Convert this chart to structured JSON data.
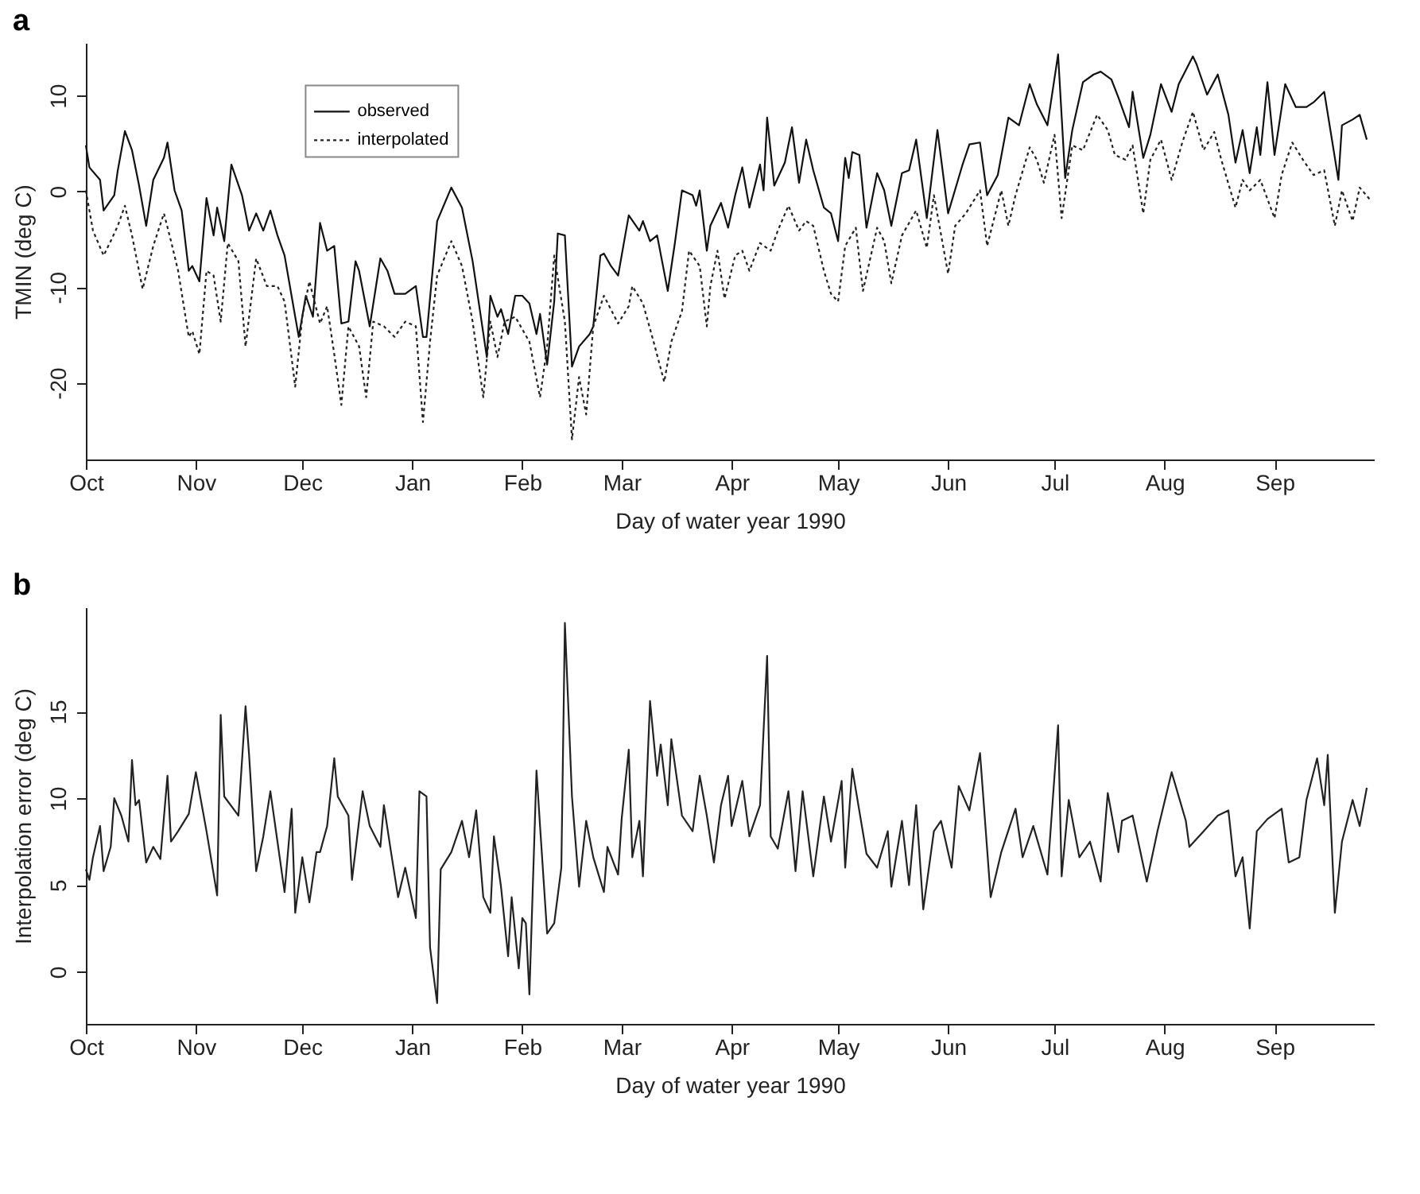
{
  "chart_data": [
    {
      "type": "line",
      "title": "a",
      "xlabel": "Day of water year 1990",
      "ylabel": "TMIN (deg C)",
      "xlim": [
        "1989-10-01",
        "1990-09-29"
      ],
      "xticks": [
        {
          "value": "1989-10-01",
          "label": "Oct"
        },
        {
          "value": "1989-11-01",
          "label": "Nov"
        },
        {
          "value": "1989-12-01",
          "label": "Dec"
        },
        {
          "value": "1990-01-01",
          "label": "Jan"
        },
        {
          "value": "1990-02-01",
          "label": "Feb"
        },
        {
          "value": "1990-03-01",
          "label": "Mar"
        },
        {
          "value": "1990-04-01",
          "label": "Apr"
        },
        {
          "value": "1990-05-01",
          "label": "May"
        },
        {
          "value": "1990-06-01",
          "label": "Jun"
        },
        {
          "value": "1990-07-01",
          "label": "Jul"
        },
        {
          "value": "1990-08-01",
          "label": "Aug"
        },
        {
          "value": "1990-09-01",
          "label": "Sep"
        }
      ],
      "ylim": [
        -28,
        15.5
      ],
      "yticks": [
        -20,
        -10,
        0,
        10
      ],
      "legend": "top left",
      "series": [
        {
          "name": "observed",
          "color": "#111111",
          "line_style": "solid",
          "x": [
            "1989-10-01",
            "1989-10-02",
            "1989-10-05",
            "1989-10-06",
            "1989-10-09",
            "1989-10-10",
            "1989-10-12",
            "1989-10-14",
            "1989-10-16",
            "1989-10-18",
            "1989-10-20",
            "1989-10-23",
            "1989-10-24",
            "1989-10-26",
            "1989-10-28",
            "1989-10-30",
            "1989-10-31",
            "1989-11-02",
            "1989-11-04",
            "1989-11-06",
            "1989-11-07",
            "1989-11-09",
            "1989-11-11",
            "1989-11-14",
            "1989-11-16",
            "1989-11-18",
            "1989-11-20",
            "1989-11-22",
            "1989-11-24",
            "1989-11-26",
            "1989-11-29",
            "1989-11-30",
            "1989-12-02",
            "1989-12-04",
            "1989-12-06",
            "1989-12-08",
            "1989-12-10",
            "1989-12-12",
            "1989-12-14",
            "1989-12-16",
            "1989-12-17",
            "1989-12-20",
            "1989-12-23",
            "1989-12-25",
            "1989-12-27",
            "1989-12-30",
            "1990-01-02",
            "1990-01-04",
            "1990-01-05",
            "1990-01-08",
            "1990-01-12",
            "1990-01-15",
            "1990-01-18",
            "1990-01-22",
            "1990-01-23",
            "1990-01-25",
            "1990-01-26",
            "1990-01-28",
            "1990-01-30",
            "1990-02-01",
            "1990-02-03",
            "1990-02-05",
            "1990-02-06",
            "1990-02-08",
            "1990-02-10",
            "1990-02-11",
            "1990-02-13",
            "1990-02-15",
            "1990-02-17",
            "1990-02-20",
            "1990-02-21",
            "1990-02-23",
            "1990-02-24",
            "1990-02-26",
            "1990-02-28",
            "1990-03-02",
            "1990-03-03",
            "1990-03-06",
            "1990-03-07",
            "1990-03-09",
            "1990-03-11",
            "1990-03-14",
            "1990-03-16",
            "1990-03-18",
            "1990-03-21",
            "1990-03-22",
            "1990-03-23",
            "1990-03-25",
            "1990-03-26",
            "1990-03-29",
            "1990-03-31",
            "1990-04-02",
            "1990-04-04",
            "1990-04-06",
            "1990-04-09",
            "1990-04-10",
            "1990-04-11",
            "1990-04-13",
            "1990-04-16",
            "1990-04-18",
            "1990-04-20",
            "1990-04-22",
            "1990-04-24",
            "1990-04-27",
            "1990-04-29",
            "1990-05-01",
            "1990-05-03",
            "1990-05-04",
            "1990-05-05",
            "1990-05-07",
            "1990-05-09",
            "1990-05-12",
            "1990-05-14",
            "1990-05-16",
            "1990-05-19",
            "1990-05-21",
            "1990-05-23",
            "1990-05-26",
            "1990-05-29",
            "1990-06-01",
            "1990-06-05",
            "1990-06-07",
            "1990-06-10",
            "1990-06-12",
            "1990-06-15",
            "1990-06-18",
            "1990-06-21",
            "1990-06-24",
            "1990-06-26",
            "1990-06-29",
            "1990-07-02",
            "1990-07-04",
            "1990-07-06",
            "1990-07-09",
            "1990-07-12",
            "1990-07-14",
            "1990-07-17",
            "1990-07-19",
            "1990-07-22",
            "1990-07-23",
            "1990-07-26",
            "1990-07-28",
            "1990-07-31",
            "1990-08-03",
            "1990-08-05",
            "1990-08-09",
            "1990-08-10",
            "1990-08-13",
            "1990-08-16",
            "1990-08-19",
            "1990-08-21",
            "1990-08-23",
            "1990-08-25",
            "1990-08-27",
            "1990-08-28",
            "1990-08-30",
            "1990-09-01",
            "1990-09-04",
            "1990-09-07",
            "1990-09-10",
            "1990-09-12",
            "1990-09-15",
            "1990-09-19",
            "1990-09-20",
            "1990-09-23",
            "1990-09-25",
            "1990-09-27"
          ],
          "values": [
            4.8,
            2.5,
            1.2,
            -2.0,
            -0.4,
            2.2,
            6.3,
            4.3,
            0.6,
            -3.6,
            1.2,
            3.5,
            5.1,
            0.1,
            -2.0,
            -8.3,
            -7.8,
            -9.4,
            -0.7,
            -4.6,
            -1.7,
            -5.2,
            2.8,
            -0.4,
            -4.1,
            -2.3,
            -4.1,
            -2.0,
            -4.6,
            -6.7,
            -13.1,
            -15.2,
            -10.9,
            -13.1,
            -3.3,
            -6.2,
            -5.7,
            -13.8,
            -13.6,
            -7.3,
            -8.3,
            -14.1,
            -7.0,
            -8.3,
            -10.7,
            -10.7,
            -9.9,
            -15.2,
            -15.2,
            -3.1,
            0.4,
            -1.7,
            -7.3,
            -17.3,
            -10.9,
            -13.1,
            -12.3,
            -14.9,
            -10.9,
            -10.9,
            -11.7,
            -14.9,
            -12.8,
            -18.1,
            -11.5,
            -4.4,
            -4.6,
            -18.3,
            -16.2,
            -14.9,
            -14.1,
            -6.7,
            -6.5,
            -7.8,
            -8.8,
            -4.6,
            -2.5,
            -4.1,
            -3.1,
            -5.2,
            -4.6,
            -10.4,
            -5.4,
            0.1,
            -0.4,
            -1.5,
            0.1,
            -6.2,
            -3.6,
            -1.2,
            -3.8,
            -0.4,
            2.5,
            -1.7,
            2.8,
            0.1,
            7.7,
            0.6,
            3.0,
            6.7,
            0.9,
            5.4,
            2.2,
            -1.7,
            -2.3,
            -5.2,
            3.5,
            1.4,
            4.1,
            3.8,
            -3.8,
            1.9,
            0.1,
            -3.6,
            1.9,
            2.2,
            5.4,
            -2.8,
            6.4,
            -2.3,
            2.7,
            4.9,
            5.1,
            -0.4,
            1.7,
            7.7,
            6.9,
            11.2,
            9.1,
            6.9,
            14.3,
            1.4,
            6.4,
            11.4,
            12.2,
            12.5,
            11.7,
            9.8,
            6.7,
            10.4,
            3.5,
            5.9,
            11.2,
            8.3,
            11.2,
            14.1,
            13.3,
            10.1,
            12.2,
            8.0,
            3.0,
            6.4,
            1.9,
            6.7,
            3.8,
            11.4,
            3.8,
            11.2,
            8.8,
            8.8,
            9.3,
            10.4,
            1.2,
            6.9,
            7.5,
            8.0,
            5.4
          ]
        },
        {
          "name": "interpolated",
          "color": "#222222",
          "line_style": "dotted",
          "x": [
            "1989-10-01",
            "1989-10-03",
            "1989-10-06",
            "1989-10-08",
            "1989-10-10",
            "1989-10-12",
            "1989-10-14",
            "1989-10-17",
            "1989-10-20",
            "1989-10-23",
            "1989-10-25",
            "1989-10-27",
            "1989-10-30",
            "1989-10-31",
            "1989-11-02",
            "1989-11-04",
            "1989-11-06",
            "1989-11-08",
            "1989-11-10",
            "1989-11-13",
            "1989-11-15",
            "1989-11-18",
            "1989-11-21",
            "1989-11-24",
            "1989-11-26",
            "1989-11-29",
            "1989-12-01",
            "1989-12-03",
            "1989-12-06",
            "1989-12-08",
            "1989-12-10",
            "1989-12-12",
            "1989-12-14",
            "1989-12-17",
            "1989-12-19",
            "1989-12-21",
            "1989-12-24",
            "1989-12-27",
            "1989-12-30",
            "1990-01-02",
            "1990-01-04",
            "1990-01-06",
            "1990-01-08",
            "1990-01-12",
            "1990-01-15",
            "1990-01-18",
            "1990-01-21",
            "1990-01-23",
            "1990-01-25",
            "1990-01-27",
            "1990-01-30",
            "1990-02-03",
            "1990-02-06",
            "1990-02-08",
            "1990-02-10",
            "1990-02-13",
            "1990-02-15",
            "1990-02-17",
            "1990-02-19",
            "1990-02-21",
            "1990-02-24",
            "1990-02-28",
            "1990-03-03",
            "1990-03-04",
            "1990-03-07",
            "1990-03-10",
            "1990-03-13",
            "1990-03-15",
            "1990-03-18",
            "1990-03-20",
            "1990-03-23",
            "1990-03-25",
            "1990-03-26",
            "1990-03-28",
            "1990-03-30",
            "1990-04-02",
            "1990-04-04",
            "1990-04-06",
            "1990-04-09",
            "1990-04-12",
            "1990-04-14",
            "1990-04-17",
            "1990-04-20",
            "1990-04-22",
            "1990-04-24",
            "1990-04-27",
            "1990-04-29",
            "1990-05-01",
            "1990-05-03",
            "1990-05-06",
            "1990-05-08",
            "1990-05-12",
            "1990-05-14",
            "1990-05-16",
            "1990-05-19",
            "1990-05-23",
            "1990-05-26",
            "1990-05-28",
            "1990-06-01",
            "1990-06-03",
            "1990-06-06",
            "1990-06-10",
            "1990-06-12",
            "1990-06-16",
            "1990-06-18",
            "1990-06-20",
            "1990-06-24",
            "1990-06-26",
            "1990-06-28",
            "1990-07-01",
            "1990-07-03",
            "1990-07-06",
            "1990-07-09",
            "1990-07-13",
            "1990-07-16",
            "1990-07-18",
            "1990-07-21",
            "1990-07-23",
            "1990-07-26",
            "1990-07-28",
            "1990-07-31",
            "1990-08-03",
            "1990-08-06",
            "1990-08-09",
            "1990-08-12",
            "1990-08-15",
            "1990-08-17",
            "1990-08-21",
            "1990-08-23",
            "1990-08-25",
            "1990-08-28",
            "1990-09-01",
            "1990-09-03",
            "1990-09-06",
            "1990-09-09",
            "1990-09-12",
            "1990-09-15",
            "1990-09-18",
            "1990-09-20",
            "1990-09-23",
            "1990-09-25",
            "1990-09-28"
          ],
          "values": [
            0.1,
            -4.1,
            -6.7,
            -5.2,
            -3.6,
            -1.5,
            -4.6,
            -10.2,
            -5.7,
            -2.3,
            -5.2,
            -8.3,
            -15.2,
            -14.6,
            -17.0,
            -8.3,
            -8.8,
            -13.6,
            -5.4,
            -7.3,
            -16.2,
            -7.0,
            -9.9,
            -9.9,
            -11.5,
            -20.4,
            -13.1,
            -9.4,
            -13.8,
            -12.0,
            -17.0,
            -22.3,
            -14.1,
            -16.2,
            -21.5,
            -13.6,
            -14.1,
            -15.2,
            -13.6,
            -14.1,
            -24.1,
            -15.7,
            -8.8,
            -5.2,
            -7.8,
            -13.6,
            -21.5,
            -13.6,
            -17.3,
            -13.6,
            -13.1,
            -15.7,
            -21.5,
            -16.2,
            -6.7,
            -13.6,
            -25.9,
            -19.4,
            -23.3,
            -14.1,
            -10.9,
            -13.8,
            -12.0,
            -9.9,
            -11.7,
            -15.7,
            -19.9,
            -15.7,
            -12.5,
            -6.2,
            -7.8,
            -14.1,
            -9.9,
            -6.2,
            -11.2,
            -6.7,
            -6.2,
            -8.3,
            -5.4,
            -6.2,
            -4.1,
            -1.5,
            -4.1,
            -3.1,
            -3.6,
            -8.3,
            -10.7,
            -11.5,
            -5.7,
            -3.8,
            -10.4,
            -3.8,
            -5.2,
            -9.6,
            -4.6,
            -2.0,
            -5.9,
            -0.4,
            -8.6,
            -3.6,
            -2.3,
            0.1,
            -5.7,
            0.1,
            -3.6,
            -0.4,
            4.6,
            3.3,
            0.9,
            5.9,
            -2.8,
            4.8,
            4.3,
            8.0,
            6.4,
            3.8,
            3.3,
            4.8,
            -2.3,
            3.3,
            5.4,
            1.2,
            5.1,
            8.3,
            4.3,
            6.2,
            3.3,
            -1.7,
            1.2,
            0.1,
            1.2,
            -2.8,
            1.7,
            5.1,
            3.3,
            1.7,
            2.2,
            -3.6,
            0.1,
            -3.1,
            0.4,
            -0.9
          ]
        }
      ]
    },
    {
      "type": "line",
      "title": "b",
      "xlabel": "Day of water year 1990",
      "ylabel": "Interpolation error (deg C)",
      "xlim": [
        "1989-10-01",
        "1990-09-29"
      ],
      "xticks": [
        {
          "value": "1989-10-01",
          "label": "Oct"
        },
        {
          "value": "1989-11-01",
          "label": "Nov"
        },
        {
          "value": "1989-12-01",
          "label": "Dec"
        },
        {
          "value": "1990-01-01",
          "label": "Jan"
        },
        {
          "value": "1990-02-01",
          "label": "Feb"
        },
        {
          "value": "1990-03-01",
          "label": "Mar"
        },
        {
          "value": "1990-04-01",
          "label": "Apr"
        },
        {
          "value": "1990-05-01",
          "label": "May"
        },
        {
          "value": "1990-06-01",
          "label": "Jun"
        },
        {
          "value": "1990-07-01",
          "label": "Jul"
        },
        {
          "value": "1990-08-01",
          "label": "Aug"
        },
        {
          "value": "1990-09-01",
          "label": "Sep"
        }
      ],
      "ylim": [
        -3,
        21
      ],
      "yticks": [
        0,
        5,
        10,
        15
      ],
      "series": [
        {
          "color": "#222222",
          "line_style": "solid",
          "x": [
            "1989-10-01",
            "1989-10-02",
            "1989-10-03",
            "1989-10-05",
            "1989-10-06",
            "1989-10-08",
            "1989-10-09",
            "1989-10-11",
            "1989-10-13",
            "1989-10-14",
            "1989-10-15",
            "1989-10-16",
            "1989-10-18",
            "1989-10-20",
            "1989-10-22",
            "1989-10-24",
            "1989-10-25",
            "1989-10-27",
            "1989-10-30",
            "1989-11-01",
            "1989-11-04",
            "1989-11-07",
            "1989-11-08",
            "1989-11-09",
            "1989-11-13",
            "1989-11-15",
            "1989-11-16",
            "1989-11-18",
            "1989-11-20",
            "1989-11-22",
            "1989-11-26",
            "1989-11-28",
            "1989-11-29",
            "1989-12-01",
            "1989-12-03",
            "1989-12-05",
            "1989-12-06",
            "1989-12-08",
            "1989-12-10",
            "1989-12-11",
            "1989-12-14",
            "1989-12-15",
            "1989-12-18",
            "1989-12-20",
            "1989-12-23",
            "1989-12-24",
            "1989-12-26",
            "1989-12-28",
            "1989-12-30",
            "1990-01-02",
            "1990-01-03",
            "1990-01-05",
            "1990-01-06",
            "1990-01-08",
            "1990-01-09",
            "1990-01-12",
            "1990-01-15",
            "1990-01-17",
            "1990-01-19",
            "1990-01-21",
            "1990-01-23",
            "1990-01-24",
            "1990-01-26",
            "1990-01-28",
            "1990-01-29",
            "1990-01-31",
            "1990-02-01",
            "1990-02-02",
            "1990-02-03",
            "1990-02-05",
            "1990-02-06",
            "1990-02-08",
            "1990-02-10",
            "1990-02-12",
            "1990-02-13",
            "1990-02-15",
            "1990-02-17",
            "1990-02-19",
            "1990-02-21",
            "1990-02-24",
            "1990-02-25",
            "1990-02-28",
            "1990-03-01",
            "1990-03-03",
            "1990-03-04",
            "1990-03-06",
            "1990-03-07",
            "1990-03-09",
            "1990-03-11",
            "1990-03-12",
            "1990-03-14",
            "1990-03-15",
            "1990-03-18",
            "1990-03-21",
            "1990-03-23",
            "1990-03-25",
            "1990-03-27",
            "1990-03-29",
            "1990-03-31",
            "1990-04-01",
            "1990-04-04",
            "1990-04-06",
            "1990-04-09",
            "1990-04-11",
            "1990-04-12",
            "1990-04-14",
            "1990-04-17",
            "1990-04-19",
            "1990-04-21",
            "1990-04-24",
            "1990-04-27",
            "1990-04-29",
            "1990-05-02",
            "1990-05-03",
            "1990-05-05",
            "1990-05-09",
            "1990-05-12",
            "1990-05-15",
            "1990-05-16",
            "1990-05-19",
            "1990-05-21",
            "1990-05-23",
            "1990-05-25",
            "1990-05-28",
            "1990-05-30",
            "1990-06-02",
            "1990-06-04",
            "1990-06-07",
            "1990-06-10",
            "1990-06-13",
            "1990-06-16",
            "1990-06-20",
            "1990-06-22",
            "1990-06-25",
            "1990-06-29",
            "1990-07-02",
            "1990-07-03",
            "1990-07-05",
            "1990-07-08",
            "1990-07-11",
            "1990-07-14",
            "1990-07-16",
            "1990-07-19",
            "1990-07-20",
            "1990-07-23",
            "1990-07-27",
            "1990-07-30",
            "1990-08-03",
            "1990-08-07",
            "1990-08-08",
            "1990-08-12",
            "1990-08-16",
            "1990-08-19",
            "1990-08-21",
            "1990-08-23",
            "1990-08-25",
            "1990-08-27",
            "1990-08-30",
            "1990-09-03",
            "1990-09-05",
            "1990-09-08",
            "1990-09-10",
            "1990-09-13",
            "1990-09-15",
            "1990-09-16",
            "1990-09-18",
            "1990-09-20",
            "1990-09-23",
            "1990-09-25",
            "1990-09-27"
          ],
          "values": [
            5.9,
            5.3,
            6.6,
            8.4,
            5.8,
            7.2,
            10.0,
            9.0,
            7.5,
            12.2,
            9.6,
            9.9,
            6.3,
            7.2,
            6.5,
            11.3,
            7.5,
            8.1,
            9.1,
            11.5,
            8.1,
            4.4,
            14.8,
            10.1,
            9.0,
            15.3,
            12.5,
            5.8,
            7.8,
            10.4,
            4.6,
            9.4,
            3.4,
            6.6,
            4.0,
            6.9,
            6.9,
            8.4,
            12.3,
            10.1,
            9.0,
            5.3,
            10.4,
            8.4,
            7.2,
            9.6,
            6.9,
            4.3,
            6.0,
            3.1,
            10.4,
            10.1,
            1.4,
            -1.8,
            5.9,
            6.9,
            8.7,
            6.6,
            9.3,
            4.3,
            3.4,
            7.8,
            4.9,
            0.9,
            4.3,
            0.2,
            3.1,
            2.8,
            -1.3,
            11.6,
            8.4,
            2.2,
            2.8,
            6.0,
            20.1,
            10.1,
            4.9,
            8.7,
            6.6,
            4.6,
            7.2,
            5.6,
            8.8,
            12.8,
            6.6,
            8.7,
            5.5,
            15.6,
            11.3,
            13.1,
            9.6,
            13.4,
            9.0,
            8.1,
            11.3,
            9.0,
            6.3,
            9.6,
            11.3,
            8.4,
            11.0,
            7.8,
            9.6,
            18.2,
            7.8,
            7.1,
            10.4,
            5.8,
            10.4,
            5.5,
            10.1,
            7.5,
            11.0,
            6.0,
            11.7,
            6.8,
            6.0,
            8.1,
            4.9,
            8.7,
            5.0,
            9.6,
            3.6,
            8.1,
            8.7,
            6.0,
            10.7,
            9.3,
            12.6,
            4.3,
            6.9,
            9.4,
            6.6,
            8.4,
            5.6,
            14.2,
            5.5,
            9.9,
            6.6,
            7.5,
            5.2,
            10.3,
            6.9,
            8.7,
            9.0,
            5.2,
            8.1,
            11.5,
            8.7,
            7.2,
            8.1,
            9.0,
            9.3,
            5.5,
            6.6,
            2.5,
            8.1,
            8.8,
            9.4,
            6.3,
            6.6,
            9.9,
            12.3,
            9.6,
            12.5,
            3.4,
            7.5,
            9.9,
            8.4,
            10.6
          ]
        }
      ]
    }
  ]
}
